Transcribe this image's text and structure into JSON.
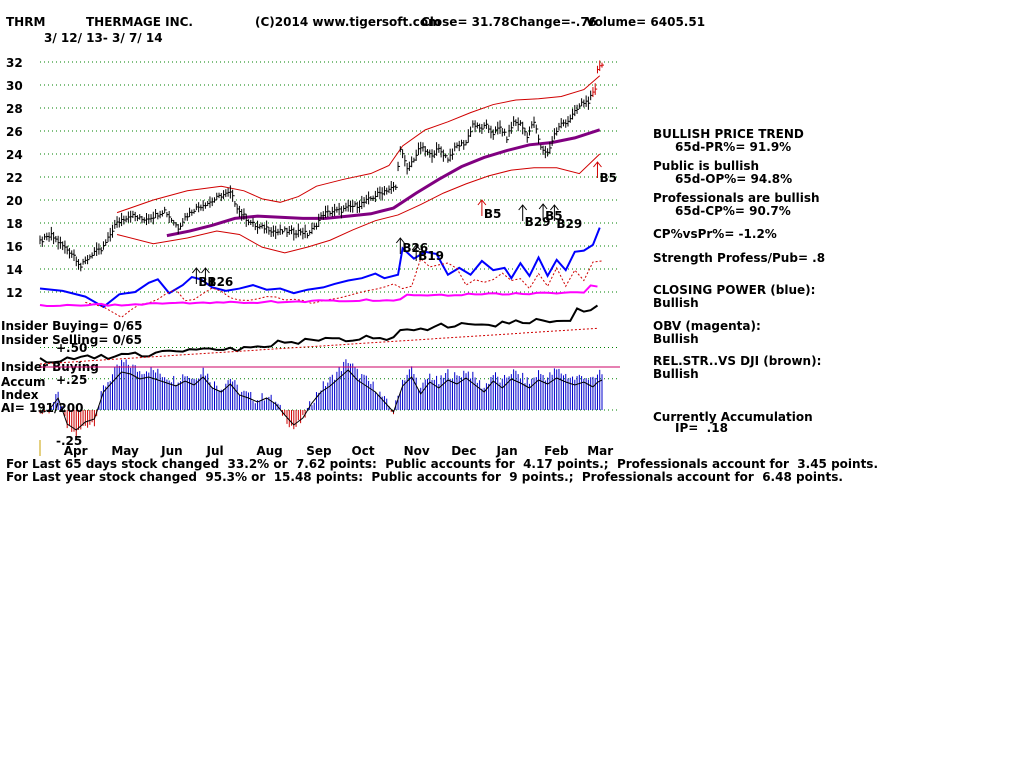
{
  "header": {
    "ticker": "THRM",
    "company": "THERMAGE INC.",
    "source": "(C)2014 www.tigersoft.com",
    "close": "Close=  31.78",
    "change": "Change=-.76",
    "volume": "Volume= 6405.51",
    "date_range": "3/ 12/ 13- 3/ 7/ 14"
  },
  "left_labels": {
    "insider_buying": "Insider Buying= 0/65",
    "insider_selling": "Insider Selling= 0/65",
    "insider_buying_panel": "Insider Buying",
    "accum_index_1": "Accum",
    "accum_index_2": "Index",
    "ai": "AI= 191/200",
    "plus50": "+.50",
    "plus25": "+.25",
    "minus25": "-.25"
  },
  "signals": [
    {
      "label": "B5",
      "day": 246
    },
    {
      "label": "B5",
      "day": 195
    },
    {
      "label": "B29",
      "day": 213
    },
    {
      "label": "B5",
      "day": 222
    },
    {
      "label": "B29",
      "day": 227
    },
    {
      "label": "B26",
      "day": 159
    },
    {
      "label": "B19",
      "day": 166
    },
    {
      "label": "B1",
      "day": 69
    },
    {
      "label": "B26",
      "day": 73
    }
  ],
  "side_panel": {
    "trend_title": "BULLISH PRICE TREND",
    "pr": "65d-PR%= 91.9%",
    "public": "Public is bullish",
    "op": "65d-OP%= 94.8%",
    "professionals": "Professionals are bullish",
    "cp": "65d-CP%= 90.7%",
    "cpvspr": "CP%vsPr%= -1.2%",
    "strength": "Strength Profess/Pub= .8",
    "closing_power": "CLOSING POWER (blue):",
    "closing_power_val": "Bullish",
    "obv": "OBV (magenta):",
    "obv_val": "Bullish",
    "relstr": "REL.STR..VS DJI (brown):",
    "relstr_val": "Bullish",
    "accum": "Currently Accumulation",
    "ip": "IP=  .18"
  },
  "footer": {
    "line1": "For Last 65 days stock changed  33.2% or  7.62 points:  Public accounts for  4.17 points.;  Professionals account for  3.45 points.",
    "line2": "For Last year stock changed  95.3% or  15.48 points:  Public accounts for  9 points.;  Professionals account for  6.48 points."
  },
  "colors": {
    "price": "#000000",
    "bands": "#d00000",
    "ma": "#800080",
    "closing_power": "#0000ff",
    "obv": "#ff00ff",
    "relstr": "#000000",
    "accum_pos": "#0000cc",
    "accum_neg": "#cc0000",
    "grid": "#008000"
  },
  "chart_data": {
    "type": "line",
    "x_unit": "trading days since 3/12/13",
    "month_ticks": [
      {
        "label": "Apr",
        "day": 14
      },
      {
        "label": "May",
        "day": 35
      },
      {
        "label": "Jun",
        "day": 57
      },
      {
        "label": "Jul",
        "day": 77
      },
      {
        "label": "Aug",
        "day": 99
      },
      {
        "label": "Sep",
        "day": 121
      },
      {
        "label": "Oct",
        "day": 141
      },
      {
        "label": "Nov",
        "day": 164
      },
      {
        "label": "Dec",
        "day": 185
      },
      {
        "label": "Jan",
        "day": 205
      },
      {
        "label": "Feb",
        "day": 226
      },
      {
        "label": "Mar",
        "day": 245
      }
    ],
    "yticks": [
      12,
      14,
      16,
      18,
      20,
      22,
      24,
      26,
      28,
      30,
      32
    ],
    "ylim": [
      12,
      32
    ],
    "xlim": [
      0,
      248
    ],
    "price_close": [
      [
        0,
        16.4
      ],
      [
        5,
        16.9
      ],
      [
        10,
        16.0
      ],
      [
        15,
        15.2
      ],
      [
        18,
        14.2
      ],
      [
        21,
        14.9
      ],
      [
        24,
        15.5
      ],
      [
        27,
        15.6
      ],
      [
        30,
        16.6
      ],
      [
        33,
        17.8
      ],
      [
        36,
        18.3
      ],
      [
        40,
        18.7
      ],
      [
        45,
        18.3
      ],
      [
        50,
        18.6
      ],
      [
        55,
        19.1
      ],
      [
        58,
        18.3
      ],
      [
        61,
        17.6
      ],
      [
        64,
        18.5
      ],
      [
        68,
        19.2
      ],
      [
        72,
        19.6
      ],
      [
        76,
        19.9
      ],
      [
        80,
        20.4
      ],
      [
        84,
        20.6
      ],
      [
        88,
        19.0
      ],
      [
        92,
        18.2
      ],
      [
        96,
        17.6
      ],
      [
        100,
        17.6
      ],
      [
        104,
        17.2
      ],
      [
        108,
        17.3
      ],
      [
        112,
        17.2
      ],
      [
        115,
        17.3
      ],
      [
        118,
        17.0
      ],
      [
        121,
        17.6
      ],
      [
        125,
        18.8
      ],
      [
        129,
        19.0
      ],
      [
        133,
        19.1
      ],
      [
        137,
        19.4
      ],
      [
        141,
        19.6
      ],
      [
        145,
        20.0
      ],
      [
        149,
        20.5
      ],
      [
        153,
        20.9
      ],
      [
        157,
        21.1
      ],
      [
        159,
        24.6
      ],
      [
        162,
        22.6
      ],
      [
        165,
        23.6
      ],
      [
        168,
        24.6
      ],
      [
        172,
        23.9
      ],
      [
        176,
        24.4
      ],
      [
        180,
        23.6
      ],
      [
        184,
        24.7
      ],
      [
        188,
        25.0
      ],
      [
        191,
        26.6
      ],
      [
        194,
        26.2
      ],
      [
        197,
        26.4
      ],
      [
        200,
        25.8
      ],
      [
        203,
        26.3
      ],
      [
        206,
        25.4
      ],
      [
        209,
        26.8
      ],
      [
        212,
        26.6
      ],
      [
        215,
        25.6
      ],
      [
        218,
        26.8
      ],
      [
        221,
        24.5
      ],
      [
        224,
        24.1
      ],
      [
        227,
        25.7
      ],
      [
        230,
        26.6
      ],
      [
        233,
        26.9
      ],
      [
        236,
        27.6
      ],
      [
        239,
        28.4
      ],
      [
        242,
        28.6
      ],
      [
        245,
        29.5
      ],
      [
        246,
        31.4
      ],
      [
        247,
        31.8
      ]
    ],
    "upper_band": [
      [
        34,
        18.9
      ],
      [
        50,
        20.0
      ],
      [
        65,
        20.8
      ],
      [
        80,
        21.2
      ],
      [
        90,
        20.8
      ],
      [
        98,
        20.1
      ],
      [
        106,
        19.8
      ],
      [
        114,
        20.3
      ],
      [
        122,
        21.2
      ],
      [
        134,
        21.8
      ],
      [
        146,
        22.3
      ],
      [
        154,
        23.0
      ],
      [
        160,
        24.7
      ],
      [
        170,
        26.1
      ],
      [
        180,
        26.8
      ],
      [
        190,
        27.6
      ],
      [
        200,
        28.3
      ],
      [
        210,
        28.7
      ],
      [
        220,
        28.8
      ],
      [
        230,
        29.0
      ],
      [
        240,
        29.6
      ],
      [
        247,
        30.8
      ]
    ],
    "lower_band": [
      [
        34,
        17.0
      ],
      [
        50,
        16.2
      ],
      [
        65,
        16.7
      ],
      [
        78,
        17.3
      ],
      [
        88,
        17.0
      ],
      [
        98,
        15.9
      ],
      [
        108,
        15.4
      ],
      [
        118,
        15.9
      ],
      [
        128,
        16.5
      ],
      [
        138,
        17.4
      ],
      [
        148,
        18.2
      ],
      [
        158,
        18.7
      ],
      [
        168,
        19.6
      ],
      [
        178,
        20.6
      ],
      [
        188,
        21.4
      ],
      [
        198,
        22.1
      ],
      [
        208,
        22.6
      ],
      [
        218,
        22.8
      ],
      [
        228,
        22.8
      ],
      [
        238,
        22.3
      ],
      [
        247,
        24.0
      ]
    ],
    "ma": [
      [
        56,
        16.9
      ],
      [
        66,
        17.3
      ],
      [
        76,
        17.8
      ],
      [
        86,
        18.4
      ],
      [
        96,
        18.6
      ],
      [
        106,
        18.5
      ],
      [
        116,
        18.4
      ],
      [
        126,
        18.4
      ],
      [
        136,
        18.6
      ],
      [
        146,
        18.8
      ],
      [
        156,
        19.3
      ],
      [
        166,
        20.6
      ],
      [
        176,
        21.8
      ],
      [
        186,
        22.9
      ],
      [
        196,
        23.7
      ],
      [
        206,
        24.3
      ],
      [
        216,
        24.8
      ],
      [
        226,
        25.0
      ],
      [
        236,
        25.4
      ],
      [
        247,
        26.1
      ]
    ],
    "lines_px": {
      "closing_power": [
        [
          0,
          12.3
        ],
        [
          10,
          12.1
        ],
        [
          20,
          11.6
        ],
        [
          28,
          10.7
        ],
        [
          35,
          11.8
        ],
        [
          42,
          12.0
        ],
        [
          48,
          12.8
        ],
        [
          52,
          13.1
        ],
        [
          57,
          11.9
        ],
        [
          63,
          12.6
        ],
        [
          67,
          13.3
        ],
        [
          71,
          13.1
        ],
        [
          76,
          12.4
        ],
        [
          82,
          12.1
        ],
        [
          88,
          12.3
        ],
        [
          94,
          12.6
        ],
        [
          100,
          12.2
        ],
        [
          106,
          12.3
        ],
        [
          112,
          11.9
        ],
        [
          118,
          12.2
        ],
        [
          125,
          12.4
        ],
        [
          130,
          12.7
        ],
        [
          136,
          13.0
        ],
        [
          142,
          13.2
        ],
        [
          148,
          13.6
        ],
        [
          152,
          13.2
        ],
        [
          158,
          13.5
        ],
        [
          160,
          15.8
        ],
        [
          165,
          14.9
        ],
        [
          170,
          15.5
        ],
        [
          175,
          15.3
        ],
        [
          180,
          13.5
        ],
        [
          185,
          14.1
        ],
        [
          190,
          13.5
        ],
        [
          195,
          14.7
        ],
        [
          200,
          13.9
        ],
        [
          205,
          14.1
        ],
        [
          208,
          13.2
        ],
        [
          212,
          14.5
        ],
        [
          216,
          13.4
        ],
        [
          220,
          15.0
        ],
        [
          224,
          13.4
        ],
        [
          228,
          14.8
        ],
        [
          232,
          13.9
        ],
        [
          236,
          15.5
        ],
        [
          240,
          15.6
        ],
        [
          244,
          16.1
        ],
        [
          247,
          17.6
        ]
      ]
    },
    "accum_series": [
      [
        0,
        -0.03
      ],
      [
        4,
        0.0
      ],
      [
        8,
        0.12
      ],
      [
        12,
        -0.14
      ],
      [
        16,
        -0.2
      ],
      [
        20,
        -0.12
      ],
      [
        24,
        -0.09
      ],
      [
        28,
        0.18
      ],
      [
        32,
        0.28
      ],
      [
        36,
        0.38
      ],
      [
        40,
        0.36
      ],
      [
        44,
        0.31
      ],
      [
        48,
        0.33
      ],
      [
        52,
        0.3
      ],
      [
        56,
        0.27
      ],
      [
        60,
        0.24
      ],
      [
        64,
        0.29
      ],
      [
        68,
        0.25
      ],
      [
        72,
        0.33
      ],
      [
        76,
        0.22
      ],
      [
        80,
        0.18
      ],
      [
        84,
        0.26
      ],
      [
        88,
        0.15
      ],
      [
        92,
        0.12
      ],
      [
        96,
        0.08
      ],
      [
        100,
        0.12
      ],
      [
        104,
        0.06
      ],
      [
        108,
        -0.05
      ],
      [
        112,
        -0.15
      ],
      [
        116,
        -0.08
      ],
      [
        120,
        0.07
      ],
      [
        124,
        0.18
      ],
      [
        128,
        0.24
      ],
      [
        132,
        0.32
      ],
      [
        136,
        0.4
      ],
      [
        140,
        0.3
      ],
      [
        144,
        0.24
      ],
      [
        148,
        0.18
      ],
      [
        152,
        0.08
      ],
      [
        156,
        -0.02
      ],
      [
        160,
        0.24
      ],
      [
        164,
        0.33
      ],
      [
        168,
        0.16
      ],
      [
        172,
        0.28
      ],
      [
        176,
        0.22
      ],
      [
        180,
        0.3
      ],
      [
        184,
        0.26
      ],
      [
        188,
        0.32
      ],
      [
        192,
        0.25
      ],
      [
        196,
        0.18
      ],
      [
        200,
        0.29
      ],
      [
        204,
        0.22
      ],
      [
        208,
        0.31
      ],
      [
        212,
        0.27
      ],
      [
        216,
        0.22
      ],
      [
        220,
        0.3
      ],
      [
        224,
        0.26
      ],
      [
        228,
        0.32
      ],
      [
        232,
        0.28
      ],
      [
        236,
        0.25
      ],
      [
        240,
        0.28
      ],
      [
        244,
        0.23
      ],
      [
        247,
        0.3
      ]
    ]
  }
}
